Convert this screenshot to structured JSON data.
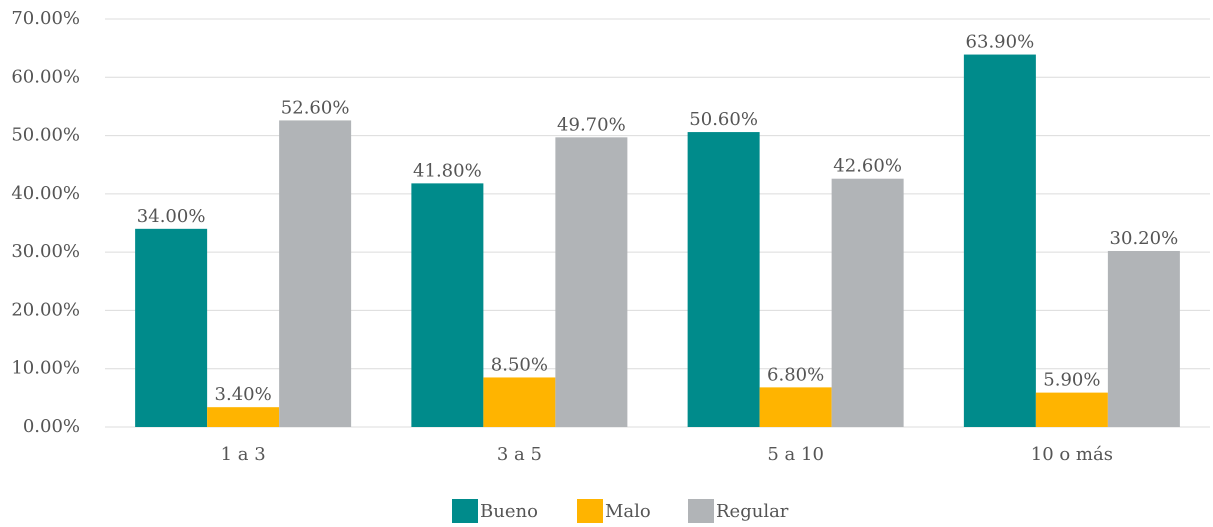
{
  "chart_data": {
    "type": "bar",
    "categories": [
      "1 a 3",
      "3 a 5",
      "5 a 10",
      "10 o más"
    ],
    "series": [
      {
        "name": "Bueno",
        "color": "#008b8b",
        "values": [
          34.0,
          41.8,
          50.6,
          63.9
        ],
        "value_labels": [
          "34.00%",
          "41.80%",
          "50.60%",
          "63.90%"
        ]
      },
      {
        "name": "Malo",
        "color": "#ffb400",
        "values": [
          3.4,
          8.5,
          6.8,
          5.9
        ],
        "value_labels": [
          "3.40%",
          "8.50%",
          "6.80%",
          "5.90%"
        ]
      },
      {
        "name": "Regular",
        "color": "#b1b4b7",
        "values": [
          52.6,
          49.7,
          42.6,
          30.2
        ],
        "value_labels": [
          "52.60%",
          "49.70%",
          "42.60%",
          "30.20%"
        ]
      }
    ],
    "ylim": [
      0,
      70
    ],
    "yticks": [
      {
        "value": 0,
        "label": "0.00%"
      },
      {
        "value": 10,
        "label": "10.00%"
      },
      {
        "value": 20,
        "label": "20.00%"
      },
      {
        "value": 30,
        "label": "30.00%"
      },
      {
        "value": 40,
        "label": "40.00%"
      },
      {
        "value": 50,
        "label": "50.00%"
      },
      {
        "value": 60,
        "label": "60.00%"
      },
      {
        "value": 70,
        "label": "70.00%"
      }
    ],
    "grid": true,
    "legend": "bottom"
  }
}
